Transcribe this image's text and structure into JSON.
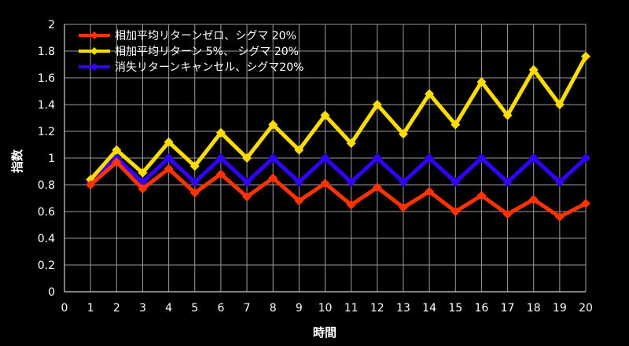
{
  "chart_data": {
    "type": "line",
    "title": "",
    "xlabel": "時間",
    "ylabel": "指数",
    "xlim": [
      0,
      20
    ],
    "ylim": [
      0,
      2
    ],
    "x_ticks": [
      0,
      1,
      2,
      3,
      4,
      5,
      6,
      7,
      8,
      9,
      10,
      11,
      12,
      13,
      14,
      15,
      16,
      17,
      18,
      19,
      20
    ],
    "y_ticks": [
      0,
      0.2,
      0.4,
      0.6,
      0.8,
      1,
      1.2,
      1.4,
      1.6,
      1.8,
      2
    ],
    "grid": true,
    "legend_position": "top-left",
    "x": [
      1,
      2,
      3,
      4,
      5,
      6,
      7,
      8,
      9,
      10,
      11,
      12,
      13,
      14,
      15,
      16,
      17,
      18,
      19,
      20
    ],
    "series": [
      {
        "name": "相加平均リターンゼロ、シグマ 20%",
        "color": "#ff3300",
        "values": [
          0.8,
          0.97,
          0.77,
          0.92,
          0.74,
          0.88,
          0.71,
          0.85,
          0.68,
          0.81,
          0.65,
          0.78,
          0.63,
          0.75,
          0.6,
          0.72,
          0.58,
          0.69,
          0.56,
          0.66
        ]
      },
      {
        "name": "相加平均リターン 5%、 シグマ 20%",
        "color": "#ffdd00",
        "values": [
          0.84,
          1.06,
          0.89,
          1.12,
          0.94,
          1.19,
          1.0,
          1.25,
          1.06,
          1.32,
          1.11,
          1.4,
          1.18,
          1.48,
          1.25,
          1.57,
          1.32,
          1.66,
          1.4,
          1.76
        ]
      },
      {
        "name": "消失リターンキャンセル、シグマ20%",
        "color": "#3300ff",
        "values": [
          0.82,
          1.0,
          0.82,
          1.0,
          0.82,
          1.0,
          0.82,
          1.0,
          0.82,
          1.0,
          0.82,
          1.0,
          0.82,
          1.0,
          0.82,
          1.0,
          0.82,
          1.0,
          0.82,
          1.0
        ]
      }
    ]
  }
}
